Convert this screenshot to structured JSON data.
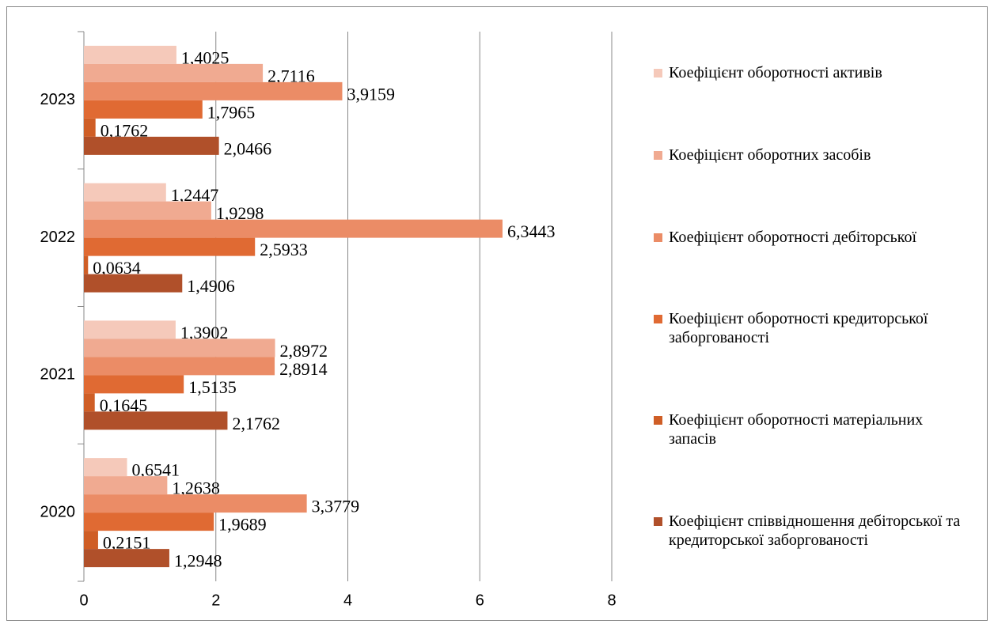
{
  "chart_data": {
    "type": "barh",
    "categories": [
      "2020",
      "2021",
      "2022",
      "2023"
    ],
    "series": [
      {
        "name": "Коефіцієнт оборотності активів",
        "color": "#f5c9ba",
        "values": [
          0.6541,
          1.3902,
          1.2447,
          1.4025
        ],
        "value_labels": [
          "0,6541",
          "1,3902",
          "1,2447",
          "1,4025"
        ]
      },
      {
        "name": "Коефіцієнт оборотних засобів",
        "color": "#f0aa91",
        "values": [
          1.2638,
          2.8972,
          1.9298,
          2.7116
        ],
        "value_labels": [
          "1,2638",
          "2,8972",
          "1,9298",
          "2,7116"
        ]
      },
      {
        "name": "Коефіцієнт оборотності дебіторської",
        "color": "#eb8c66",
        "values": [
          3.3779,
          2.8914,
          6.3443,
          3.9159
        ],
        "value_labels": [
          "3,3779",
          "2,8914",
          "6,3443",
          "3,9159"
        ]
      },
      {
        "name": "Коефіцієнт оборотності кредиторської заборгованості",
        "color": "#e06a33",
        "values": [
          1.9689,
          1.5135,
          2.5933,
          1.7965
        ],
        "value_labels": [
          "1,9689",
          "1,5135",
          "2,5933",
          "1,7965"
        ]
      },
      {
        "name": "Коефіцієнт оборотності матеріальних запасів",
        "color": "#cf5e26",
        "values": [
          0.2151,
          0.1645,
          0.0634,
          0.1762
        ],
        "value_labels": [
          "0,2151",
          "0,1645",
          "0,0634",
          "0,1762"
        ]
      },
      {
        "name": "Коефіцієнт співвідношення дебіторської та кредиторської заборгованості",
        "color": "#b0502a",
        "values": [
          1.2948,
          2.1762,
          1.4906,
          2.0466
        ],
        "value_labels": [
          "1,2948",
          "2,1762",
          "1,4906",
          "2,0466"
        ]
      }
    ],
    "xlim": [
      0,
      8
    ],
    "xticks": [
      0,
      2,
      4,
      6,
      8
    ],
    "grid": true,
    "legend": "right"
  }
}
